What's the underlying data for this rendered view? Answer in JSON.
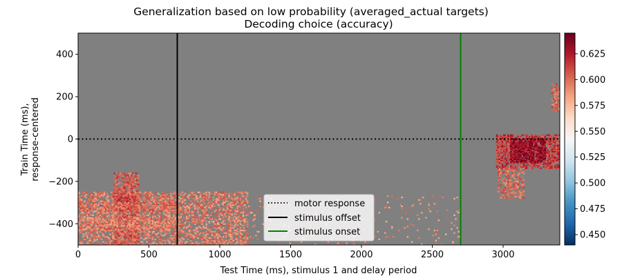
{
  "chart_data": {
    "type": "heatmap",
    "title": "Generalization based on low probability (averaged_actual targets)",
    "subtitle": "Decoding choice (accuracy)",
    "xlabel": "Test Time (ms), stimulus 1 and delay period",
    "ylabel_lines": [
      "Train Time (ms),",
      "response-centered"
    ],
    "xlim": [
      0,
      3400
    ],
    "ylim": [
      -500,
      500
    ],
    "x_ticks": [
      0,
      500,
      1000,
      1500,
      2000,
      2500,
      3000
    ],
    "y_ticks": [
      -400,
      -200,
      0,
      200,
      400
    ],
    "background_color": "#808080",
    "colorbar": {
      "min": 0.44,
      "max": 0.645,
      "ticks": [
        "0.450",
        "0.475",
        "0.500",
        "0.525",
        "0.550",
        "0.575",
        "0.600",
        "0.625"
      ],
      "colormap": "RdBu_r"
    },
    "reference_lines": [
      {
        "name": "motor response",
        "orientation": "horizontal",
        "value": 0,
        "color": "#000000",
        "style": "dotted"
      },
      {
        "name": "stimulus offset",
        "orientation": "vertical",
        "value": 700,
        "color": "#000000",
        "style": "solid"
      },
      {
        "name": "stimulus onset",
        "orientation": "vertical",
        "value": 2700,
        "color": "#008000",
        "style": "solid"
      }
    ],
    "legend_position": "lower-center",
    "significant_regions": [
      {
        "x": [
          0,
          1200
        ],
        "y": [
          -500,
          -250
        ],
        "value": 0.595,
        "density": 0.45
      },
      {
        "x": [
          250,
          430
        ],
        "y": [
          -500,
          -160
        ],
        "value": 0.605,
        "density": 0.6
      },
      {
        "x": [
          270,
          400
        ],
        "y": [
          -340,
          -270
        ],
        "value": 0.612,
        "density": 0.75
      },
      {
        "x": [
          0,
          700
        ],
        "y": [
          -340,
          -300
        ],
        "value": 0.6,
        "density": 0.55
      },
      {
        "x": [
          0,
          700
        ],
        "y": [
          -430,
          -370
        ],
        "value": 0.595,
        "density": 0.5
      },
      {
        "x": [
          1200,
          2700
        ],
        "y": [
          -500,
          -270
        ],
        "value": 0.59,
        "density": 0.04
      },
      {
        "x": [
          2950,
          3400
        ],
        "y": [
          -140,
          20
        ],
        "value": 0.615,
        "density": 0.7
      },
      {
        "x": [
          3050,
          3300
        ],
        "y": [
          -110,
          0
        ],
        "value": 0.632,
        "density": 0.8
      },
      {
        "x": [
          2960,
          3150
        ],
        "y": [
          -280,
          -140
        ],
        "value": 0.6,
        "density": 0.45
      },
      {
        "x": [
          3340,
          3400
        ],
        "y": [
          130,
          260
        ],
        "value": 0.6,
        "density": 0.55
      }
    ]
  }
}
